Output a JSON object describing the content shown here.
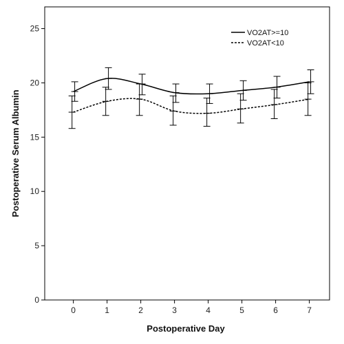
{
  "chart_data": {
    "type": "line",
    "xlabel": "Postoperative Day",
    "ylabel": "Postoperative Serum Albumin",
    "x": [
      0,
      1,
      2,
      3,
      4,
      5,
      6,
      7
    ],
    "xlim": [
      -0.85,
      7.6
    ],
    "ylim": [
      0,
      27
    ],
    "yticks": [
      0,
      5,
      10,
      15,
      20,
      25
    ],
    "legend_position": "top-right",
    "grid": false,
    "series": [
      {
        "name": "VO2AT>=10",
        "line_style": "solid",
        "color": "#000000",
        "values": [
          19.2,
          20.4,
          19.9,
          19.1,
          19.0,
          19.3,
          19.6,
          20.1
        ],
        "error_low": [
          18.3,
          19.4,
          18.9,
          18.2,
          18.1,
          18.4,
          18.6,
          19.0
        ],
        "error_high": [
          20.1,
          21.4,
          20.8,
          19.9,
          19.9,
          20.2,
          20.6,
          21.2
        ]
      },
      {
        "name": "VO2AT<10",
        "line_style": "dashed",
        "color": "#000000",
        "values": [
          17.3,
          18.3,
          18.5,
          17.4,
          17.2,
          17.6,
          18.0,
          18.5
        ],
        "error_low": [
          15.8,
          17.0,
          17.0,
          16.1,
          16.0,
          16.3,
          16.7,
          17.0
        ],
        "error_high": [
          18.8,
          19.6,
          19.9,
          18.8,
          18.6,
          19.0,
          19.4,
          20.0
        ]
      }
    ]
  }
}
